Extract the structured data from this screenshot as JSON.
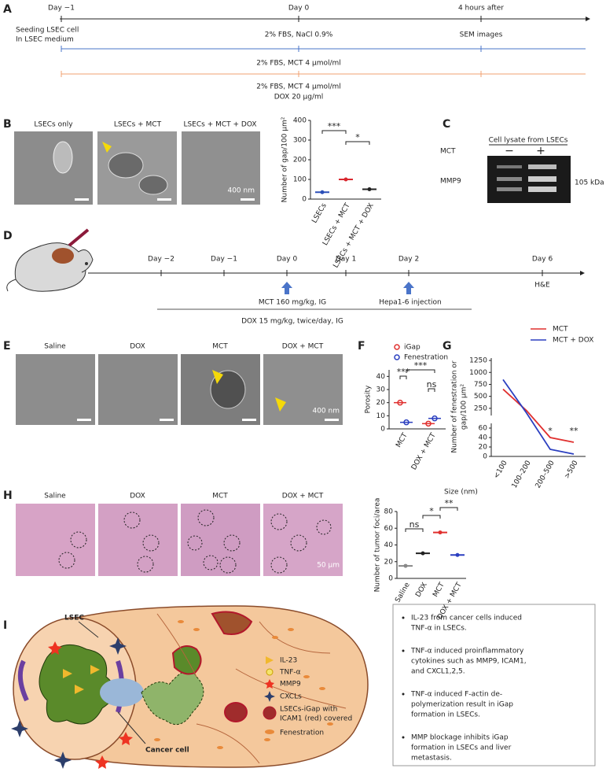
{
  "panel_labels": [
    "A",
    "B",
    "C",
    "D",
    "E",
    "F",
    "G",
    "H",
    "I"
  ],
  "a": {
    "days": [
      "Day −1",
      "Day 0",
      "4 hours after"
    ],
    "seeding": [
      "Seeding LSEC cell",
      "In LSEC medium"
    ],
    "saline": "2% FBS, NaCl 0.9%",
    "sem": "SEM images",
    "mct": "2% FBS, MCT 4 μmol/ml",
    "mctdox": [
      "2% FBS, MCT 4 μmol/ml",
      "DOX 20 μg/ml"
    ]
  },
  "b": {
    "images": [
      "LSECs only",
      "LSECs + MCT",
      "LSECs + MCT + DOX"
    ],
    "scale": "400 nm",
    "chart": {
      "type": "scatter",
      "ylabel": "Number of gap/100 μm²",
      "categories": [
        "LSECs",
        "LSECs + MCT",
        "LSECs + MCT + DOX"
      ],
      "values": [
        35,
        100,
        50
      ],
      "colors": [
        "#2b4fb8",
        "#d9282f",
        "#222222"
      ],
      "ylim": [
        0,
        400
      ],
      "yticks": [
        0,
        100,
        200,
        300,
        400
      ],
      "significance": [
        "***",
        "*"
      ]
    }
  },
  "c": {
    "title": "Cell lysate from LSECs",
    "mct": "MCT",
    "minus": "−",
    "plus": "+",
    "band": "MMP9",
    "size": "105 kDa"
  },
  "d": {
    "days": [
      "Day −2",
      "Day −1",
      "Day 0",
      "Day 1",
      "Day 2",
      "Day 6"
    ],
    "he": "H&E",
    "mct": "MCT 160 mg/kg, IG",
    "hepa": "Hepa1-6 injection",
    "dox": "DOX 15 mg/kg, twice/day, IG"
  },
  "e": {
    "images": [
      "Saline",
      "DOX",
      "MCT",
      "DOX + MCT"
    ],
    "scale": "400 nm"
  },
  "f": {
    "type": "scatter",
    "ylabel": "Porosity",
    "categories": [
      "MCT",
      "DOX + MCT"
    ],
    "series": [
      {
        "name": "iGap",
        "color": "#e0302f",
        "values": [
          20,
          4
        ]
      },
      {
        "name": "Fenestration",
        "color": "#2b3fc0",
        "values": [
          5,
          8
        ]
      }
    ],
    "ylim": [
      0,
      45
    ],
    "yticks": [
      0,
      10,
      20,
      30,
      40
    ],
    "significance": [
      "***",
      "***",
      "ns"
    ]
  },
  "g": {
    "type": "line",
    "xlabel": "Size (nm)",
    "ylabel": [
      "Number of fenestration or",
      "gap/100 μm²"
    ],
    "categories": [
      "<100",
      "100–200",
      "200–500",
      ">500"
    ],
    "series": [
      {
        "name": "MCT",
        "color": "#e0302f",
        "values": [
          650,
          200,
          40,
          30
        ]
      },
      {
        "name": "MCT + DOX",
        "color": "#2b3fc0",
        "values": [
          850,
          150,
          15,
          5
        ]
      }
    ],
    "ylim_upper": [
      100,
      1300
    ],
    "yticks_upper": [
      250,
      500,
      750,
      1000,
      1250
    ],
    "ylim_lower": [
      0,
      70
    ],
    "yticks_lower": [
      0,
      20,
      40,
      60
    ],
    "significance": [
      "*",
      "**"
    ]
  },
  "h": {
    "images": [
      "Saline",
      "DOX",
      "MCT",
      "DOX + MCT"
    ],
    "scale": "50 μm",
    "chart": {
      "type": "scatter",
      "ylabel": "Number of tumor foci/area",
      "categories": [
        "Saline",
        "DOX",
        "MCT",
        "DOX + MCT"
      ],
      "values": [
        15,
        30,
        55,
        28
      ],
      "colors": [
        "#888888",
        "#222222",
        "#e0302f",
        "#2b3fc0"
      ],
      "ylim": [
        0,
        80
      ],
      "yticks": [
        0,
        20,
        40,
        60,
        80
      ],
      "significance": [
        "ns",
        "*",
        "**"
      ]
    }
  },
  "i": {
    "lsec": "LSEC",
    "cancer": "Cancer cell",
    "legend": [
      "IL-23",
      "TNF-α",
      "MMP9",
      "CXCLs",
      "LSECs-iGap with",
      "ICAM1 (red) covered",
      "Fenestration"
    ],
    "bullets": [
      [
        "IL-23 from cancer cells induced",
        "TNF-α in LSECs."
      ],
      [
        "TNF-α induced proinflammatory",
        "cytokines such as MMP9, ICAM1,",
        "and CXCL1,2,5."
      ],
      [
        "TNF-α induced F-actin de-",
        "polymerization result in iGap",
        "formation in LSECs."
      ],
      [
        "MMP blockage inhibits iGap",
        "formation in LSECs and liver",
        "metastasis."
      ]
    ]
  }
}
